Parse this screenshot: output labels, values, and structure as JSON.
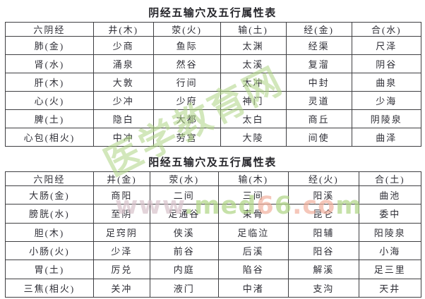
{
  "tables": [
    {
      "title": "阴经五输穴及五行属性表",
      "headers": [
        "六阴经",
        "井(木)",
        "荥(火)",
        "输(土)",
        "经(金)",
        "合(水)"
      ],
      "rows": [
        [
          "肺(金)",
          "少商",
          "鱼际",
          "太渊",
          "经渠",
          "尺泽"
        ],
        [
          "肾(水)",
          "涌泉",
          "然谷",
          "太溪",
          "复溜",
          "阴谷"
        ],
        [
          "肝(木)",
          "大敦",
          "行间",
          "太冲",
          "中封",
          "曲泉"
        ],
        [
          "心(火)",
          "少冲",
          "少府",
          "神门",
          "灵道",
          "少海"
        ],
        [
          "脾(土)",
          "隐白",
          "大都",
          "太白",
          "商丘",
          "阴陵泉"
        ],
        [
          "心包(相火)",
          "中冲",
          "劳宫",
          "大陵",
          "间使",
          "曲泽"
        ]
      ]
    },
    {
      "title": "阳经五输穴及五行属性表",
      "headers": [
        "六阳经",
        "井(金)",
        "荥(水)",
        "输(木)",
        "经(火)",
        "合(土)"
      ],
      "rows": [
        [
          "大肠(金)",
          "商阳",
          "二间",
          "三间",
          "阳溪",
          "曲池"
        ],
        [
          "膀胱(水)",
          "至阴",
          "足通谷",
          "束骨",
          "昆仑",
          "委中"
        ],
        [
          "胆(木)",
          "足窍阴",
          "侠溪",
          "足临泣",
          "阳辅",
          "阳陵泉"
        ],
        [
          "小肠(火)",
          "少泽",
          "前谷",
          "后溪",
          "阳谷",
          "小海"
        ],
        [
          "胃(土)",
          "厉兑",
          "内庭",
          "陷谷",
          "解溪",
          "足三里"
        ],
        [
          "三焦(相火)",
          "关冲",
          "液门",
          "中渚",
          "支沟",
          "天井"
        ]
      ]
    }
  ],
  "watermarks": {
    "diagonal_text": "医学教育网",
    "url_text": "www.med66.com",
    "palette": {
      "green": "#aed584",
      "pink": "#f2b09d",
      "gray_pink": "#d8c3cb"
    }
  }
}
